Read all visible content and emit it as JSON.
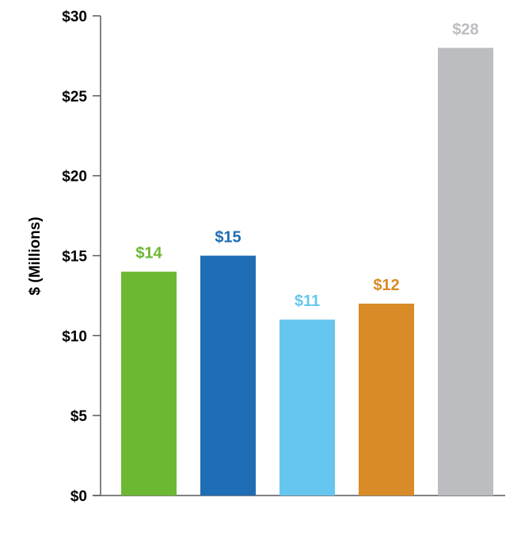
{
  "chart_data": {
    "type": "bar",
    "title": "",
    "xlabel": "",
    "ylabel": "$ (Millions)",
    "ylim": [
      0,
      30
    ],
    "yticks": [
      0,
      5,
      10,
      15,
      20,
      25,
      30
    ],
    "ytick_labels": [
      "$0",
      "$5",
      "$10",
      "$15",
      "$20",
      "$25",
      "$30"
    ],
    "grid": false,
    "legend": "none",
    "categories": [
      "",
      "",
      "",
      "",
      ""
    ],
    "values": [
      14,
      15,
      11,
      12,
      28
    ],
    "value_labels": [
      "$14",
      "$15",
      "$11",
      "$12",
      "$28"
    ],
    "colors": [
      "#6db833",
      "#1f6db4",
      "#67c6ef",
      "#d88b26",
      "#bcbdc0"
    ]
  }
}
